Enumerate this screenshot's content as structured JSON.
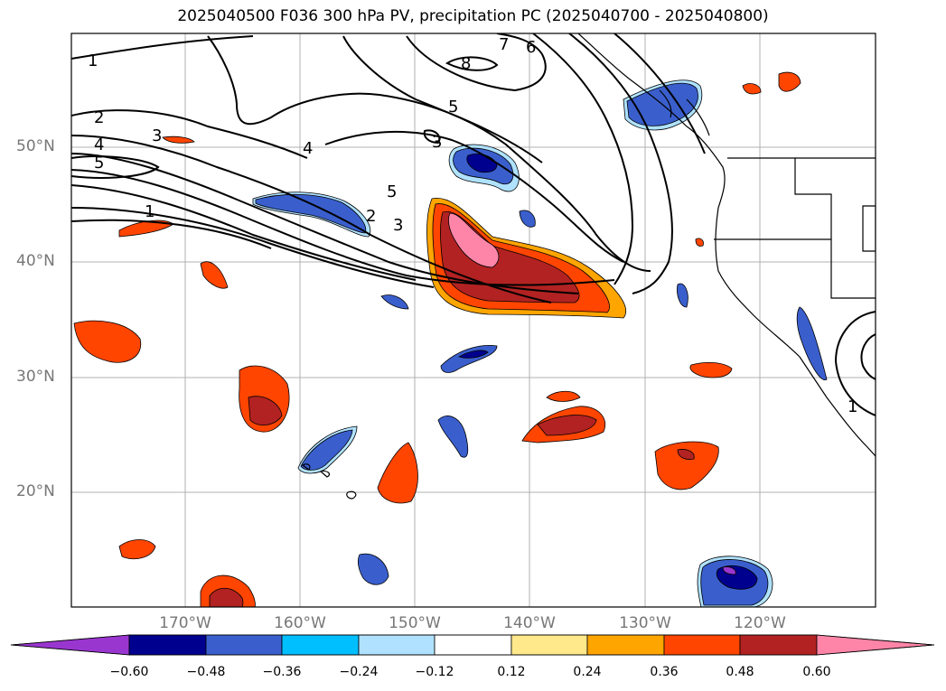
{
  "title": "2025040500 F036 300 hPa PV, precipitation PC (2025040700 - 2025040800)",
  "lat_labels": [
    "50°N",
    "40°N",
    "30°N",
    "20°N"
  ],
  "lon_labels": [
    "170°W",
    "160°W",
    "150°W",
    "140°W",
    "130°W",
    "120°W"
  ],
  "contour_labels": [
    "1",
    "2",
    "3",
    "4",
    "5",
    "1",
    "2",
    "3",
    "4",
    "5",
    "5",
    "3",
    "7",
    "6",
    "8",
    "1"
  ],
  "colorbar": {
    "ticks": [
      "−0.60",
      "−0.48",
      "−0.36",
      "−0.24",
      "−0.12",
      "0.12",
      "0.24",
      "0.36",
      "0.48",
      "0.60"
    ],
    "colors": [
      "#9a36d0",
      "#00008f",
      "#3a5fcd",
      "#00bfff",
      "#b0e2ff",
      "#ffffff",
      "#ffe98a",
      "#ffa500",
      "#ff4500",
      "#b22222",
      "#ff85a8"
    ]
  }
}
